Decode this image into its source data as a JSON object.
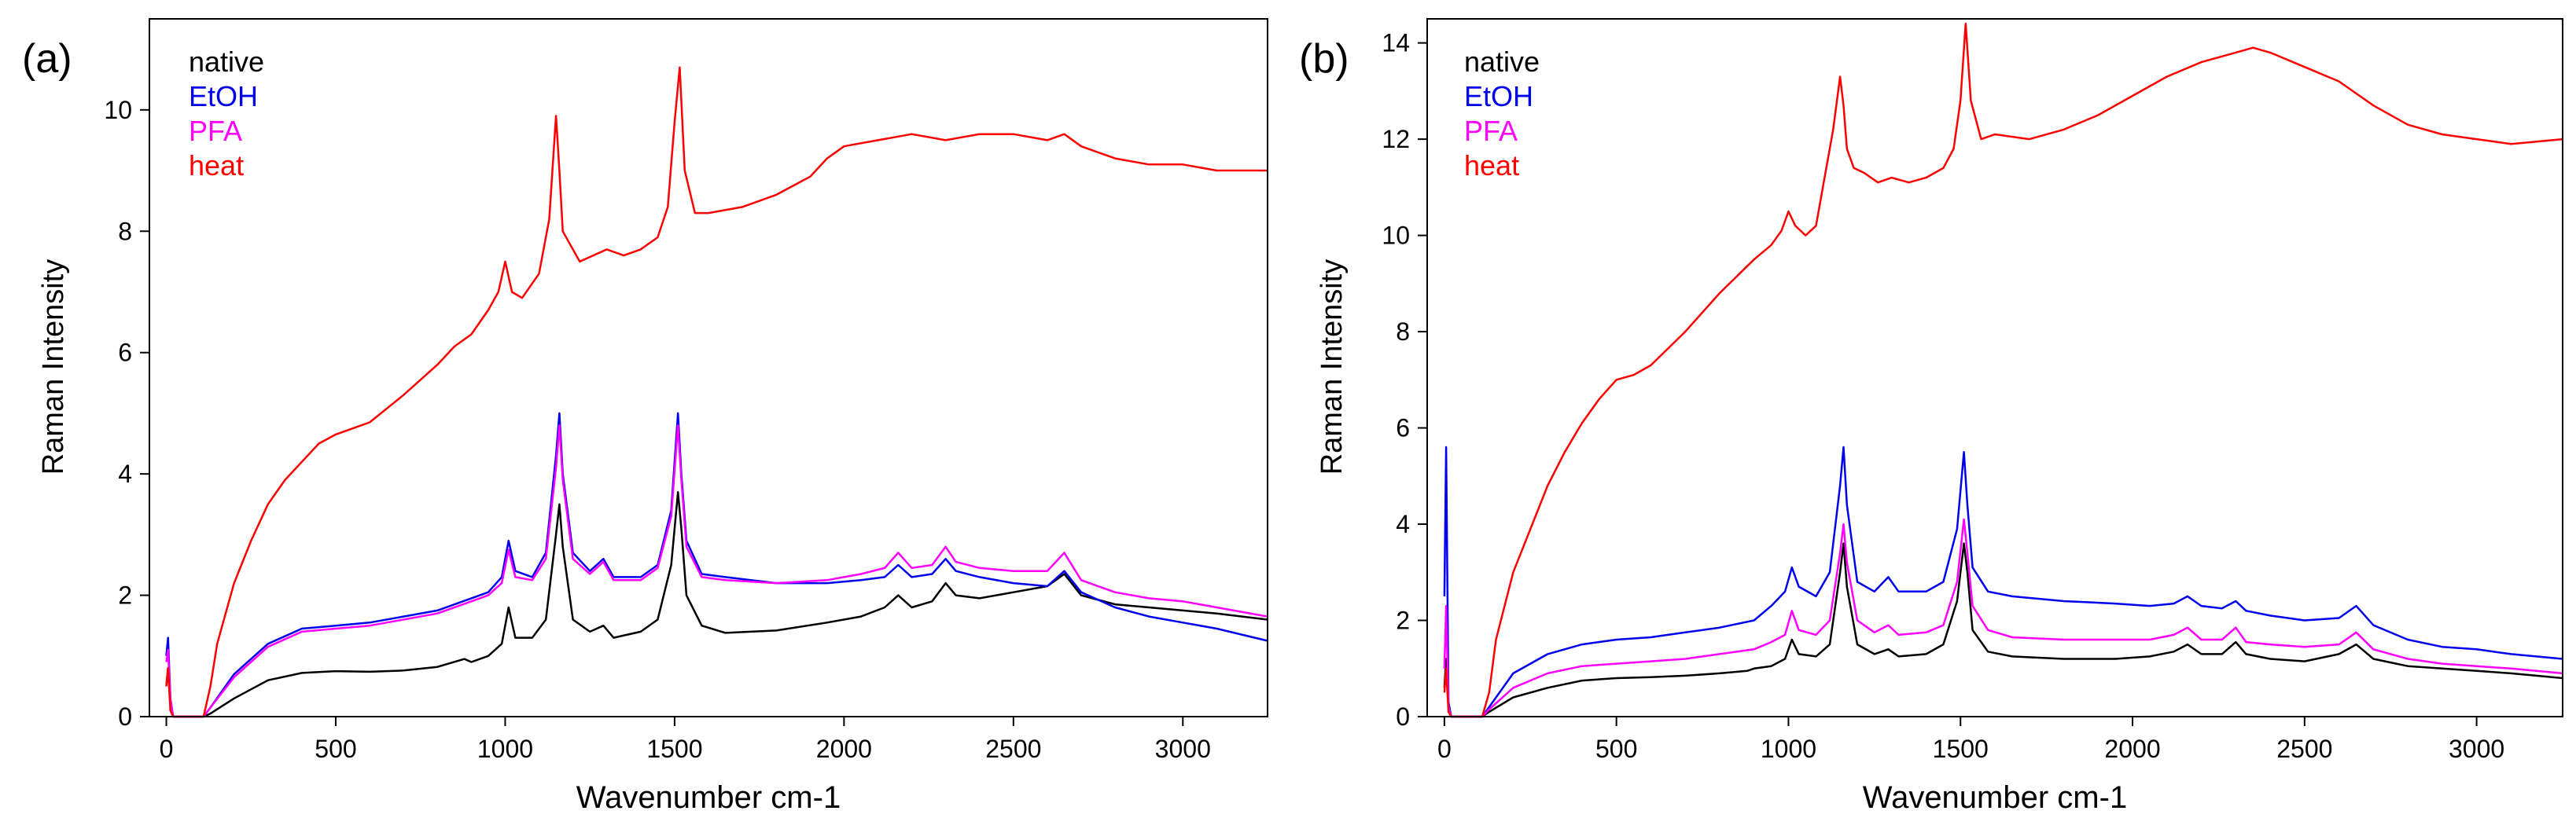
{
  "chart_data": [
    {
      "type": "line",
      "panel_label": "(a)",
      "xlabel": "Wavenumber cm-1",
      "ylabel": "Raman Intensity",
      "xlim": [
        -50,
        3250
      ],
      "ylim": [
        0,
        11.5
      ],
      "xticks": [
        0,
        500,
        1000,
        1500,
        2000,
        2500,
        3000
      ],
      "yticks": [
        0,
        2,
        4,
        6,
        8,
        10
      ],
      "grid": false,
      "legend": "top-left",
      "series": [
        {
          "name": "native",
          "color": "#000000",
          "x": [
            0,
            5,
            12,
            20,
            40,
            60,
            80,
            110,
            130,
            200,
            300,
            400,
            500,
            600,
            700,
            800,
            880,
            900,
            950,
            990,
            1010,
            1030,
            1080,
            1120,
            1150,
            1160,
            1170,
            1200,
            1250,
            1290,
            1320,
            1400,
            1450,
            1490,
            1510,
            1520,
            1535,
            1580,
            1650,
            1800,
            1950,
            2050,
            2120,
            2160,
            2200,
            2260,
            2300,
            2330,
            2400,
            2500,
            2600,
            2650,
            2700,
            2800,
            2900,
            3000,
            3100,
            3250
          ],
          "y": [
            0.5,
            0.8,
            0.2,
            0,
            0,
            0,
            0,
            0,
            0.05,
            0.3,
            0.6,
            0.72,
            0.75,
            0.74,
            0.76,
            0.82,
            0.95,
            0.9,
            1.0,
            1.2,
            1.8,
            1.3,
            1.3,
            1.6,
            3.0,
            3.5,
            2.8,
            1.6,
            1.4,
            1.5,
            1.3,
            1.4,
            1.6,
            2.5,
            3.7,
            3.1,
            2.0,
            1.5,
            1.38,
            1.42,
            1.55,
            1.65,
            1.8,
            2.0,
            1.8,
            1.9,
            2.2,
            2.0,
            1.95,
            2.05,
            2.15,
            2.35,
            2.0,
            1.85,
            1.8,
            1.75,
            1.7,
            1.6
          ]
        },
        {
          "name": "EtOH",
          "color": "#0000ee",
          "x": [
            0,
            5,
            12,
            20,
            40,
            60,
            80,
            110,
            130,
            200,
            300,
            400,
            500,
            600,
            700,
            800,
            900,
            950,
            990,
            1010,
            1030,
            1080,
            1120,
            1150,
            1160,
            1170,
            1200,
            1250,
            1290,
            1320,
            1400,
            1450,
            1490,
            1510,
            1520,
            1535,
            1580,
            1650,
            1800,
            1950,
            2050,
            2120,
            2160,
            2200,
            2260,
            2300,
            2330,
            2400,
            2500,
            2600,
            2650,
            2700,
            2800,
            2900,
            3000,
            3100,
            3250
          ],
          "y": [
            1.0,
            1.3,
            0.3,
            0,
            0,
            0,
            0,
            0,
            0.15,
            0.7,
            1.2,
            1.45,
            1.5,
            1.55,
            1.65,
            1.75,
            1.95,
            2.05,
            2.3,
            2.9,
            2.4,
            2.3,
            2.7,
            4.3,
            5.0,
            4.0,
            2.7,
            2.4,
            2.6,
            2.3,
            2.3,
            2.5,
            3.4,
            5.0,
            4.0,
            2.9,
            2.35,
            2.3,
            2.2,
            2.2,
            2.25,
            2.3,
            2.5,
            2.3,
            2.35,
            2.6,
            2.4,
            2.3,
            2.2,
            2.15,
            2.4,
            2.05,
            1.8,
            1.65,
            1.55,
            1.45,
            1.25
          ]
        },
        {
          "name": "PFA",
          "color": "#ff00ff",
          "x": [
            0,
            5,
            12,
            20,
            40,
            60,
            80,
            110,
            130,
            200,
            300,
            400,
            500,
            600,
            700,
            800,
            900,
            950,
            990,
            1010,
            1030,
            1080,
            1120,
            1150,
            1160,
            1170,
            1200,
            1250,
            1290,
            1320,
            1400,
            1450,
            1490,
            1510,
            1520,
            1535,
            1580,
            1650,
            1800,
            1950,
            2050,
            2120,
            2160,
            2200,
            2260,
            2300,
            2330,
            2400,
            2500,
            2600,
            2650,
            2700,
            2800,
            2900,
            3000,
            3100,
            3250
          ],
          "y": [
            0.9,
            1.1,
            0.3,
            0,
            0,
            0,
            0,
            0,
            0.15,
            0.65,
            1.15,
            1.4,
            1.45,
            1.5,
            1.6,
            1.7,
            1.9,
            2.0,
            2.2,
            2.75,
            2.3,
            2.25,
            2.6,
            4.1,
            4.8,
            3.9,
            2.6,
            2.35,
            2.55,
            2.25,
            2.25,
            2.45,
            3.3,
            4.8,
            3.9,
            2.8,
            2.3,
            2.25,
            2.2,
            2.25,
            2.35,
            2.45,
            2.7,
            2.45,
            2.5,
            2.8,
            2.55,
            2.45,
            2.4,
            2.4,
            2.7,
            2.25,
            2.05,
            1.95,
            1.9,
            1.8,
            1.65
          ]
        },
        {
          "name": "heat",
          "color": "#ff0000",
          "x": [
            0,
            5,
            12,
            20,
            40,
            60,
            80,
            110,
            130,
            150,
            200,
            250,
            300,
            350,
            400,
            450,
            500,
            550,
            600,
            700,
            800,
            850,
            900,
            950,
            980,
            1000,
            1020,
            1050,
            1100,
            1130,
            1150,
            1160,
            1170,
            1190,
            1220,
            1260,
            1300,
            1350,
            1400,
            1450,
            1480,
            1500,
            1515,
            1530,
            1560,
            1600,
            1700,
            1800,
            1900,
            1950,
            2000,
            2100,
            2200,
            2300,
            2400,
            2500,
            2600,
            2650,
            2700,
            2800,
            2900,
            3000,
            3100,
            3250
          ],
          "y": [
            0.5,
            0.8,
            0.1,
            0,
            0,
            0,
            0,
            0,
            0.5,
            1.2,
            2.2,
            2.9,
            3.5,
            3.9,
            4.2,
            4.5,
            4.65,
            4.75,
            4.85,
            5.3,
            5.8,
            6.1,
            6.3,
            6.7,
            7.0,
            7.5,
            7.0,
            6.9,
            7.3,
            8.2,
            9.9,
            9.0,
            8.0,
            7.8,
            7.5,
            7.6,
            7.7,
            7.6,
            7.7,
            7.9,
            8.4,
            9.8,
            10.7,
            9.0,
            8.3,
            8.3,
            8.4,
            8.6,
            8.9,
            9.2,
            9.4,
            9.5,
            9.6,
            9.5,
            9.6,
            9.6,
            9.5,
            9.6,
            9.4,
            9.2,
            9.1,
            9.1,
            9.0,
            9.0
          ]
        }
      ]
    },
    {
      "type": "line",
      "panel_label": "(b)",
      "xlabel": "Wavenumber cm-1",
      "ylabel": "Raman Intensity",
      "xlim": [
        -50,
        3250
      ],
      "ylim": [
        0,
        14.5
      ],
      "xticks": [
        0,
        500,
        1000,
        1500,
        2000,
        2500,
        3000
      ],
      "yticks": [
        0,
        2,
        4,
        6,
        8,
        10,
        12,
        14
      ],
      "grid": false,
      "legend": "top-left",
      "series": [
        {
          "name": "native",
          "color": "#000000",
          "x": [
            0,
            5,
            12,
            20,
            40,
            60,
            80,
            110,
            130,
            200,
            300,
            400,
            500,
            600,
            700,
            800,
            880,
            900,
            950,
            990,
            1010,
            1030,
            1080,
            1120,
            1150,
            1160,
            1170,
            1200,
            1250,
            1290,
            1320,
            1400,
            1450,
            1490,
            1510,
            1520,
            1535,
            1580,
            1650,
            1800,
            1950,
            2050,
            2120,
            2160,
            2200,
            2260,
            2300,
            2330,
            2400,
            2500,
            2600,
            2650,
            2700,
            2800,
            2900,
            3000,
            3100,
            3250
          ],
          "y": [
            0.6,
            1.2,
            0.2,
            0,
            0,
            0,
            0,
            0,
            0.1,
            0.4,
            0.6,
            0.75,
            0.8,
            0.82,
            0.85,
            0.9,
            0.95,
            1.0,
            1.05,
            1.2,
            1.6,
            1.3,
            1.25,
            1.5,
            3.0,
            3.6,
            2.7,
            1.5,
            1.3,
            1.4,
            1.25,
            1.3,
            1.5,
            2.4,
            3.6,
            3.0,
            1.8,
            1.35,
            1.25,
            1.2,
            1.2,
            1.25,
            1.35,
            1.5,
            1.3,
            1.3,
            1.55,
            1.3,
            1.2,
            1.15,
            1.3,
            1.5,
            1.2,
            1.05,
            1.0,
            0.95,
            0.9,
            0.8
          ]
        },
        {
          "name": "EtOH",
          "color": "#0000ee",
          "x": [
            0,
            5,
            12,
            20,
            40,
            60,
            80,
            110,
            130,
            200,
            300,
            400,
            500,
            600,
            700,
            800,
            900,
            950,
            990,
            1010,
            1030,
            1080,
            1120,
            1150,
            1160,
            1170,
            1200,
            1250,
            1290,
            1320,
            1400,
            1450,
            1490,
            1510,
            1520,
            1535,
            1580,
            1650,
            1800,
            1950,
            2050,
            2120,
            2160,
            2200,
            2260,
            2300,
            2330,
            2400,
            2500,
            2600,
            2650,
            2700,
            2800,
            2900,
            3000,
            3100,
            3250
          ],
          "y": [
            2.5,
            5.6,
            0.3,
            0,
            0,
            0,
            0,
            0,
            0.2,
            0.9,
            1.3,
            1.5,
            1.6,
            1.65,
            1.75,
            1.85,
            2.0,
            2.3,
            2.6,
            3.1,
            2.7,
            2.5,
            3.0,
            4.8,
            5.6,
            4.4,
            2.8,
            2.6,
            2.9,
            2.6,
            2.6,
            2.8,
            3.9,
            5.5,
            4.4,
            3.1,
            2.6,
            2.5,
            2.4,
            2.35,
            2.3,
            2.35,
            2.5,
            2.3,
            2.25,
            2.4,
            2.2,
            2.1,
            2.0,
            2.05,
            2.3,
            1.9,
            1.6,
            1.45,
            1.4,
            1.3,
            1.2
          ]
        },
        {
          "name": "PFA",
          "color": "#ff00ff",
          "x": [
            0,
            5,
            12,
            20,
            40,
            60,
            80,
            110,
            130,
            200,
            300,
            400,
            500,
            600,
            700,
            800,
            900,
            950,
            990,
            1010,
            1030,
            1080,
            1120,
            1150,
            1160,
            1170,
            1200,
            1250,
            1290,
            1320,
            1400,
            1450,
            1490,
            1510,
            1520,
            1535,
            1580,
            1650,
            1800,
            1950,
            2050,
            2120,
            2160,
            2200,
            2260,
            2300,
            2330,
            2400,
            2500,
            2600,
            2650,
            2700,
            2800,
            2900,
            3000,
            3100,
            3250
          ],
          "y": [
            1.0,
            2.3,
            0.2,
            0,
            0,
            0,
            0,
            0,
            0.15,
            0.6,
            0.9,
            1.05,
            1.1,
            1.15,
            1.2,
            1.3,
            1.4,
            1.55,
            1.7,
            2.2,
            1.8,
            1.7,
            2.0,
            3.4,
            4.0,
            3.2,
            2.0,
            1.75,
            1.9,
            1.7,
            1.75,
            1.9,
            2.8,
            4.1,
            3.4,
            2.3,
            1.8,
            1.65,
            1.6,
            1.6,
            1.6,
            1.7,
            1.85,
            1.6,
            1.6,
            1.85,
            1.55,
            1.5,
            1.45,
            1.5,
            1.75,
            1.4,
            1.2,
            1.1,
            1.05,
            1.0,
            0.9
          ]
        },
        {
          "name": "heat",
          "color": "#ff0000",
          "x": [
            0,
            5,
            12,
            20,
            40,
            60,
            80,
            110,
            130,
            150,
            200,
            250,
            300,
            350,
            400,
            450,
            500,
            550,
            600,
            700,
            800,
            900,
            950,
            980,
            1000,
            1020,
            1050,
            1080,
            1100,
            1130,
            1150,
            1160,
            1170,
            1190,
            1220,
            1260,
            1300,
            1350,
            1400,
            1450,
            1480,
            1500,
            1515,
            1530,
            1560,
            1600,
            1700,
            1800,
            1900,
            2000,
            2100,
            2200,
            2300,
            2350,
            2400,
            2500,
            2600,
            2700,
            2800,
            2900,
            3000,
            3100,
            3250
          ],
          "y": [
            0.5,
            1.0,
            0.1,
            0,
            0,
            0,
            0,
            0,
            0.5,
            1.6,
            3.0,
            3.9,
            4.8,
            5.5,
            6.1,
            6.6,
            7.0,
            7.1,
            7.3,
            8.0,
            8.8,
            9.5,
            9.8,
            10.1,
            10.5,
            10.2,
            10.0,
            10.2,
            11.0,
            12.2,
            13.3,
            12.7,
            11.8,
            11.4,
            11.3,
            11.1,
            11.2,
            11.1,
            11.2,
            11.4,
            11.8,
            12.8,
            14.4,
            12.8,
            12.0,
            12.1,
            12.0,
            12.2,
            12.5,
            12.9,
            13.3,
            13.6,
            13.8,
            13.9,
            13.8,
            13.5,
            13.2,
            12.7,
            12.3,
            12.1,
            12.0,
            11.9,
            12.0
          ]
        }
      ]
    }
  ]
}
